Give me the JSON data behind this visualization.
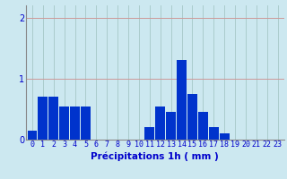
{
  "values": [
    0.15,
    0.7,
    0.7,
    0.55,
    0.55,
    0.55,
    0,
    0,
    0,
    0,
    0,
    0.2,
    0.55,
    0.45,
    1.3,
    0.75,
    0.45,
    0.2,
    0.1,
    0,
    0,
    0,
    0,
    0
  ],
  "categories": [
    0,
    1,
    2,
    3,
    4,
    5,
    6,
    7,
    8,
    9,
    10,
    11,
    12,
    13,
    14,
    15,
    16,
    17,
    18,
    19,
    20,
    21,
    22,
    23
  ],
  "bar_color": "#0033cc",
  "bg_color": "#cce8f0",
  "grid_color_h": "#cc9999",
  "grid_color_v": "#aacccc",
  "yticks": [
    0,
    1,
    2
  ],
  "ylim": [
    0,
    2.2
  ],
  "text_color": "#0000cc",
  "xlabel": "Précipitations 1h ( mm )",
  "tick_fontsize": 6,
  "xlabel_fontsize": 7.5
}
